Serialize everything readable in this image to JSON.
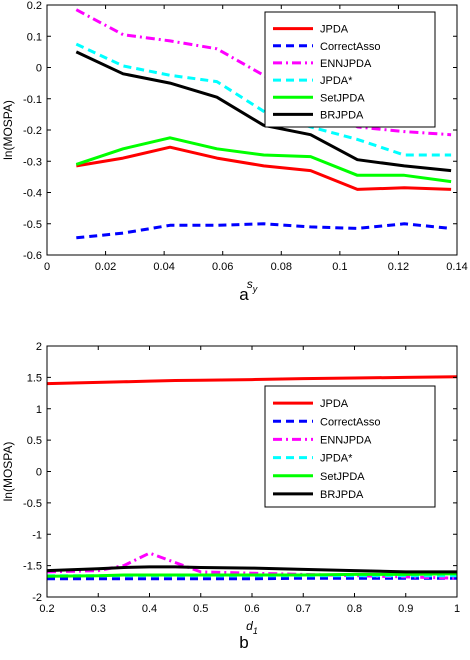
{
  "chart_data": [
    {
      "type": "line",
      "panel_label": "a",
      "xlabel": "s",
      "xlabel_sub": "y",
      "ylabel": "ln(MOSPA)",
      "xlim": [
        0,
        0.14
      ],
      "ylim": [
        -0.6,
        0.2
      ],
      "xticks": [
        "0",
        "0.02",
        "0.04",
        "0.06",
        "0.08",
        "0.1",
        "0.12",
        "0.14"
      ],
      "yticks": [
        "-0.6",
        "-0.5",
        "-0.4",
        "-0.3",
        "-0.2",
        "-0.1",
        "0",
        "0.1",
        "0.2"
      ],
      "legend_position": "top-right",
      "x": [
        0.01,
        0.026,
        0.042,
        0.058,
        0.074,
        0.09,
        0.106,
        0.122,
        0.138
      ],
      "series": [
        {
          "name": "JPDA",
          "color": "#ff0000",
          "style": "solid",
          "values": [
            -0.315,
            -0.29,
            -0.255,
            -0.29,
            -0.315,
            -0.33,
            -0.39,
            -0.385,
            -0.39
          ]
        },
        {
          "name": "CorrectAsso",
          "color": "#0000ff",
          "style": "dashed",
          "values": [
            -0.545,
            -0.53,
            -0.505,
            -0.505,
            -0.5,
            -0.51,
            -0.515,
            -0.5,
            -0.515
          ]
        },
        {
          "name": "ENNJPDA",
          "color": "#ff00ff",
          "style": "dashdot",
          "values": [
            0.185,
            0.105,
            0.085,
            0.06,
            -0.025,
            -0.1,
            -0.19,
            -0.205,
            -0.215
          ]
        },
        {
          "name": "JPDA*",
          "color": "#00ffff",
          "style": "dashed",
          "values": [
            0.075,
            0.005,
            -0.025,
            -0.045,
            -0.14,
            -0.19,
            -0.23,
            -0.28,
            -0.28
          ]
        },
        {
          "name": "SetJPDA",
          "color": "#00ff00",
          "style": "solid",
          "values": [
            -0.31,
            -0.26,
            -0.225,
            -0.26,
            -0.28,
            -0.285,
            -0.345,
            -0.345,
            -0.365
          ]
        },
        {
          "name": "BRJPDA",
          "color": "#000000",
          "style": "solid",
          "values": [
            0.05,
            -0.02,
            -0.05,
            -0.095,
            -0.185,
            -0.215,
            -0.295,
            -0.315,
            -0.33
          ]
        }
      ]
    },
    {
      "type": "line",
      "panel_label": "b",
      "xlabel": "d",
      "xlabel_sub": "1",
      "ylabel": "ln(MOSPA)",
      "xlim": [
        0.2,
        1
      ],
      "ylim": [
        -2,
        2
      ],
      "xticks": [
        "0.2",
        "0.3",
        "0.4",
        "0.5",
        "0.6",
        "0.7",
        "0.8",
        "0.9",
        "1"
      ],
      "yticks": [
        "-2",
        "-1.5",
        "-1",
        "-0.5",
        "0",
        "0.5",
        "1",
        "1.5",
        "2"
      ],
      "legend_position": "top-right",
      "x": [
        0.2,
        0.3,
        0.35,
        0.4,
        0.45,
        0.5,
        0.6,
        0.7,
        0.8,
        0.9,
        1.0
      ],
      "series": [
        {
          "name": "JPDA",
          "color": "#ff0000",
          "style": "solid",
          "values": [
            1.4,
            1.42,
            1.43,
            1.44,
            1.45,
            1.455,
            1.465,
            1.48,
            1.49,
            1.5,
            1.51
          ]
        },
        {
          "name": "CorrectAsso",
          "color": "#0000ff",
          "style": "dashed",
          "values": [
            -1.71,
            -1.71,
            -1.71,
            -1.71,
            -1.71,
            -1.71,
            -1.71,
            -1.7,
            -1.7,
            -1.7,
            -1.7
          ]
        },
        {
          "name": "ENNJPDA",
          "color": "#ff00ff",
          "style": "dashdot",
          "values": [
            -1.6,
            -1.58,
            -1.5,
            -1.3,
            -1.45,
            -1.6,
            -1.62,
            -1.64,
            -1.66,
            -1.68,
            -1.7
          ]
        },
        {
          "name": "JPDA*",
          "color": "#00ffff",
          "style": "dashed",
          "values": [
            -1.66,
            -1.66,
            -1.66,
            -1.66,
            -1.66,
            -1.66,
            -1.66,
            -1.66,
            -1.66,
            -1.66,
            -1.66
          ]
        },
        {
          "name": "SetJPDA",
          "color": "#00ff00",
          "style": "solid",
          "values": [
            -1.67,
            -1.66,
            -1.65,
            -1.65,
            -1.65,
            -1.65,
            -1.65,
            -1.65,
            -1.64,
            -1.64,
            -1.63
          ]
        },
        {
          "name": "BRJPDA",
          "color": "#000000",
          "style": "solid",
          "values": [
            -1.58,
            -1.55,
            -1.53,
            -1.52,
            -1.52,
            -1.53,
            -1.54,
            -1.56,
            -1.58,
            -1.6,
            -1.6
          ]
        }
      ]
    }
  ]
}
